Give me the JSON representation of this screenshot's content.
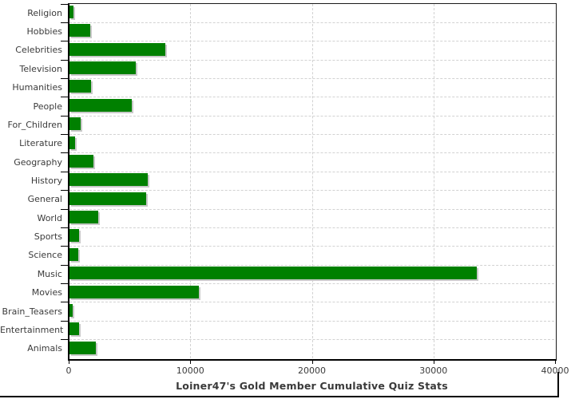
{
  "chart_data": {
    "type": "bar",
    "orientation": "horizontal",
    "title": "Loiner47's Gold Member Cumulative Quiz Stats",
    "categories": [
      "Religion",
      "Hobbies",
      "Celebrities",
      "Television",
      "Humanities",
      "People",
      "For_Children",
      "Literature",
      "Geography",
      "History",
      "General",
      "World",
      "Sports",
      "Science",
      "Music",
      "Movies",
      "Brain_Teasers",
      "Entertainment",
      "Animals"
    ],
    "values": [
      320,
      1690,
      7850,
      5470,
      1760,
      5100,
      890,
      450,
      1940,
      6430,
      6280,
      2370,
      800,
      700,
      33500,
      10670,
      290,
      760,
      2200
    ],
    "xlim": [
      0,
      40000
    ],
    "x_ticks": [
      0,
      10000,
      20000,
      30000,
      40000
    ],
    "x_tick_labels": [
      "0",
      "10000",
      "20000",
      "30000",
      "40000"
    ],
    "grid": "dashed-both-axes",
    "legend": "none",
    "colors": {
      "bar": "#008000",
      "bar_shadow": "#c9c9c9",
      "grid": "#d2d2d2",
      "axis": "#000000",
      "text": "#3b3b3b",
      "title_text": "#3a3a3a",
      "background": "#ffffff"
    }
  }
}
